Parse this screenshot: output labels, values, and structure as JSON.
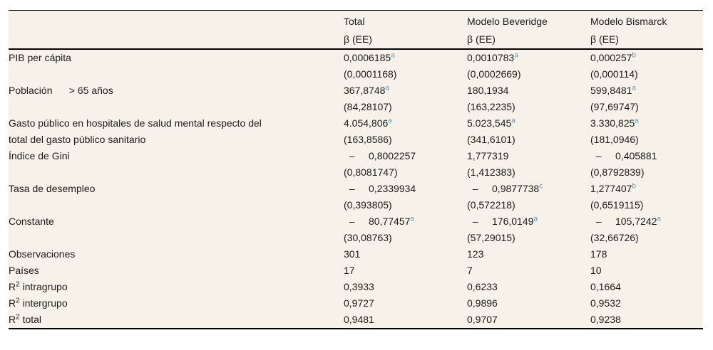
{
  "colors": {
    "background": "#f6f2e9",
    "text": "#1b1b1b",
    "superscript": "#3ea2d9",
    "rule": "#000000"
  },
  "table": {
    "columns": [
      {
        "label": "",
        "sub": ""
      },
      {
        "label": "Total",
        "sub": "β (EE)"
      },
      {
        "label": "Modelo Beveridge",
        "sub": "β (EE)"
      },
      {
        "label": "Modelo Bismarck",
        "sub": "β (EE)"
      }
    ],
    "variable_rows": [
      {
        "label": "PIB per cápita",
        "cells": [
          {
            "value": "0,0006185",
            "sup": "a",
            "se": "(0,0001168)"
          },
          {
            "value": "0,0010783",
            "sup": "a",
            "se": "(0,0002669)"
          },
          {
            "value": "0,000257",
            "sup": "b",
            "se": "(0,000114)"
          }
        ]
      },
      {
        "label": "Población      > 65 años",
        "cells": [
          {
            "value": "367,8748",
            "sup": "a",
            "se": "(84,28107)"
          },
          {
            "value": "180,1934",
            "sup": "",
            "se": "(163,2235)"
          },
          {
            "value": "599,8481",
            "sup": "a",
            "se": "(97,69747)"
          }
        ]
      },
      {
        "label": "Gasto público en hospitales de salud mental respecto del\ntotal del gasto público sanitario",
        "cells": [
          {
            "value": "4.054,806",
            "sup": "a",
            "se": "(163,8586)"
          },
          {
            "value": "5.023,545",
            "sup": "a",
            "se": "(341,6101)"
          },
          {
            "value": "3.330,825",
            "sup": "a",
            "se": "(181,0946)"
          }
        ]
      },
      {
        "label": "Índice de Gini",
        "cells": [
          {
            "value": "  –     0,8002257",
            "sup": "",
            "se": "(0,8081747)"
          },
          {
            "value": "1,777319",
            "sup": "",
            "se": "(1,412383)"
          },
          {
            "value": "  –     0,405881",
            "sup": "",
            "se": "(0,8792839)"
          }
        ]
      },
      {
        "label": "Tasa de desempleo",
        "cells": [
          {
            "value": "  –     0,2339934",
            "sup": "",
            "se": "(0,393805)"
          },
          {
            "value": "  –     0,9877738",
            "sup": "c",
            "se": "(0,572218)"
          },
          {
            "value": "1,277407",
            "sup": "b",
            "se": "(0,6519115)"
          }
        ]
      },
      {
        "label": "Constante",
        "cells": [
          {
            "value": "  –     80,77457",
            "sup": "a",
            "se": "(30,08763)"
          },
          {
            "value": "  –     176,0149",
            "sup": "a",
            "se": "(57,29015)"
          },
          {
            "value": "  –     105,7242",
            "sup": "a",
            "se": "(32,66726)"
          }
        ]
      }
    ],
    "stat_rows": [
      {
        "label": "Observaciones",
        "values": [
          "301",
          "123",
          "178"
        ]
      },
      {
        "label": "Países",
        "values": [
          "17",
          "7",
          "10"
        ]
      },
      {
        "label": "R² intragrupo",
        "values": [
          "0,3933",
          "0,6233",
          "0,1664"
        ]
      },
      {
        "label": "R² intergrupo",
        "values": [
          "0,9727",
          "0,9896",
          "0,9532"
        ]
      },
      {
        "label": "R² total",
        "values": [
          "0,9481",
          "0,9707",
          "0,9238"
        ]
      }
    ]
  }
}
